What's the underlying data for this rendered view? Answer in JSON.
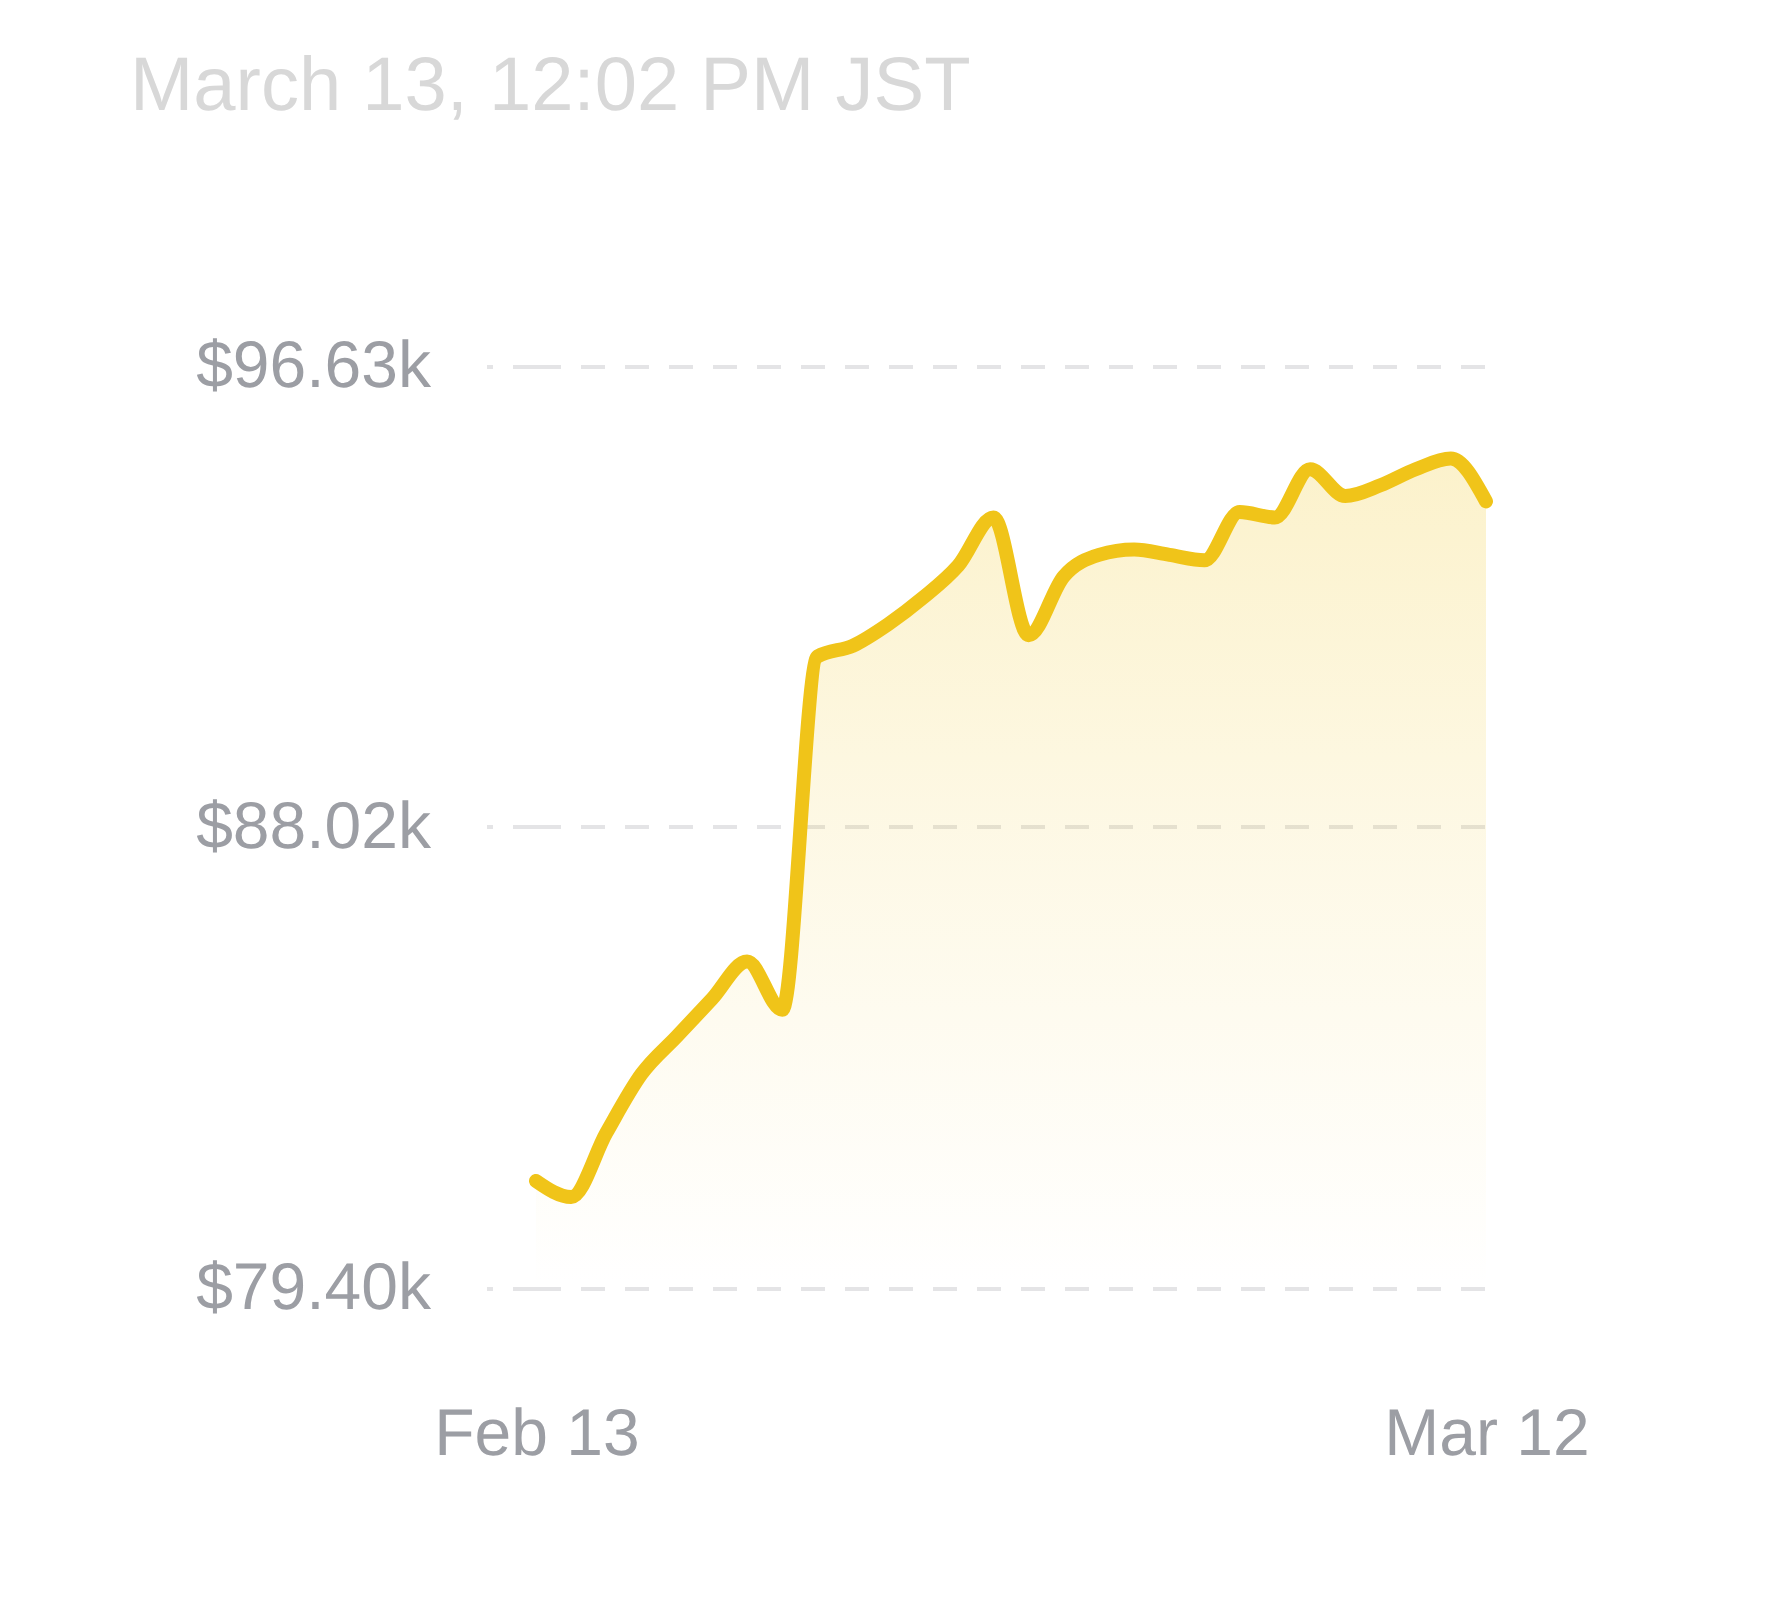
{
  "chart_data": {
    "type": "area",
    "title": "March 13, 12:02 PM JST",
    "x": [
      "--02-13",
      "--02-14",
      "--02-15",
      "--02-16",
      "--02-17",
      "--02-18",
      "--02-19",
      "--02-20",
      "--02-21",
      "--02-22",
      "--02-23",
      "--02-24",
      "--02-25",
      "--02-26",
      "--02-27",
      "--02-28",
      "--03-01",
      "--03-02",
      "--03-03",
      "--03-04",
      "--03-05",
      "--03-06",
      "--03-07",
      "--03-08",
      "--03-09",
      "--03-10",
      "--03-11",
      "--03-12"
    ],
    "values": [
      81.4,
      81.1,
      82.3,
      83.4,
      84.1,
      84.8,
      85.5,
      84.6,
      91.2,
      91.4,
      91.8,
      92.3,
      92.9,
      93.8,
      91.6,
      92.7,
      93.1,
      93.2,
      93.1,
      93.0,
      93.9,
      93.8,
      94.7,
      94.2,
      94.4,
      94.7,
      94.9,
      94.1
    ],
    "color": "#f0c419",
    "xlim": [
      "--02-13",
      "--03-12"
    ],
    "xticks": [
      {
        "value": "--02-13",
        "label": "Feb 13"
      },
      {
        "value": "--03-12",
        "label": "Mar 12"
      }
    ],
    "ylim": [
      79.4,
      96.63
    ],
    "yticks": [
      {
        "value": 79.4,
        "label": "$79.40k"
      },
      {
        "value": 88.02,
        "label": "$88.02k"
      },
      {
        "value": 96.63,
        "label": "$96.63k"
      }
    ],
    "grid": "y"
  }
}
